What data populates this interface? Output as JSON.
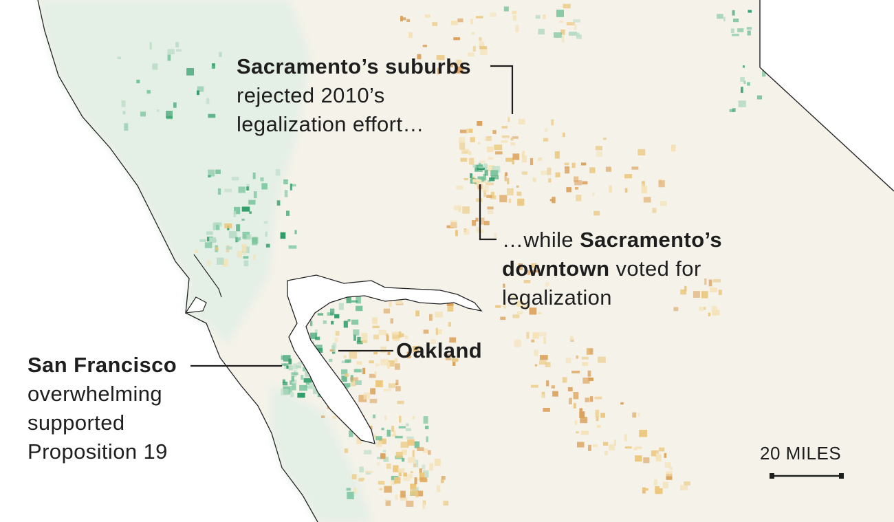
{
  "colors": {
    "land": "#f4f2e9",
    "coastal_green": "#e4efe6",
    "support_light": "#b9dcc6",
    "support": "#74c29a",
    "support_strong": "#2f9d69",
    "oppose_light": "#f5e2b6",
    "oppose": "#ecc77c",
    "oppose_strong": "#dca25c",
    "water": "#ffffff",
    "border": "#222222",
    "leader": "#1e1e1e"
  },
  "annotations": {
    "sac_suburbs": {
      "bold": "Sacramento’s suburbs",
      "line2": "rejected 2010’s",
      "line3": "legalization effort…"
    },
    "sac_downtown": {
      "prefix": "…while ",
      "bold1": "Sacramento’s",
      "bold2": "downtown",
      "rest2": " voted for",
      "line3": "legalization"
    },
    "oakland": "Oakland",
    "san_francisco": {
      "bold": "San Francisco",
      "line2": "overwhelming",
      "line3": "supported",
      "line4": "Proposition 19"
    }
  },
  "scale_bar": {
    "label": "20 MILES"
  }
}
